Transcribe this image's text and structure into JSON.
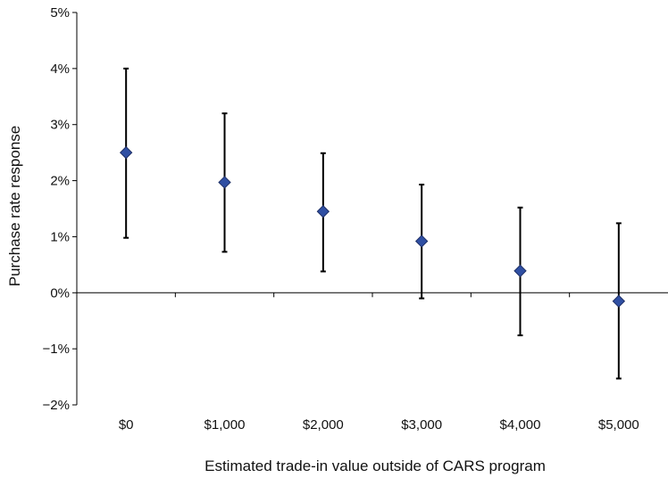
{
  "chart_data": {
    "type": "scatter",
    "title": "",
    "xlabel": "Estimated trade-in value outside of CARS program",
    "ylabel": "Purchase rate response",
    "categories": [
      "$0",
      "$1,000",
      "$2,000",
      "$3,000",
      "$4,000",
      "$5,000"
    ],
    "series": [
      {
        "values": [
          2.5,
          1.97,
          1.45,
          0.92,
          0.39,
          -0.15
        ],
        "error_low": [
          0.98,
          0.73,
          0.38,
          -0.1,
          -0.76,
          -1.53
        ],
        "error_high": [
          4.0,
          3.2,
          2.49,
          1.93,
          1.52,
          1.24
        ],
        "color": "#2f4fa3",
        "marker": "diamond"
      }
    ],
    "y_ticks": [
      5,
      4,
      3,
      2,
      1,
      0,
      -1,
      -2
    ],
    "y_tick_labels": [
      "5%",
      "4%",
      "3%",
      "2%",
      "1%",
      "0%",
      "−1%",
      "−2%"
    ],
    "ylim": [
      -2,
      5
    ],
    "y_unit": "%",
    "grid": false,
    "legend": "none"
  }
}
